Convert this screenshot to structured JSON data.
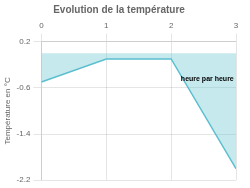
{
  "chart_data": {
    "type": "line",
    "title": "Evolution de la température",
    "y_label": "Température en °C",
    "x": [
      0,
      1,
      2,
      3
    ],
    "series": [
      {
        "values": [
          -0.5,
          -0.1,
          -0.1,
          -2.0
        ],
        "color": "#5bbfcf"
      }
    ],
    "xlim": [
      0,
      3
    ],
    "xticks": [
      0,
      1,
      2,
      3
    ],
    "ylim": [
      -2.2,
      0.2
    ],
    "yticks": [
      0.2,
      -0.6,
      -1.4,
      -2.2
    ],
    "grid": true,
    "annotations": [
      {
        "text": "heure par heure",
        "x": 2.15,
        "y": -0.38
      }
    ]
  }
}
